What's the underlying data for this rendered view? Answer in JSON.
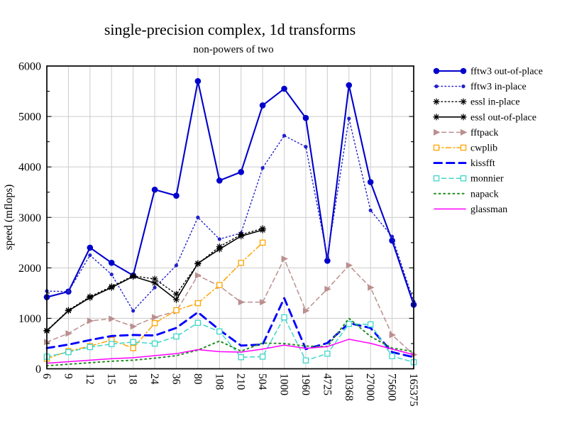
{
  "chart_data": {
    "type": "line",
    "title": "single-precision complex, 1d transforms",
    "subtitle": "non-powers of two",
    "ylabel": "speed (mflops)",
    "xlabel": "",
    "ylim": [
      0,
      6000
    ],
    "y_ticks": [
      0,
      1000,
      2000,
      3000,
      4000,
      5000,
      6000
    ],
    "y_minor_tick_step": 500,
    "grid": true,
    "legend_position": "right-outside",
    "background": "#ffffff",
    "grid_color": "#cccccc",
    "frame_color": "#000000",
    "categories": [
      6,
      9,
      12,
      15,
      18,
      24,
      36,
      80,
      108,
      210,
      504,
      1000,
      1960,
      4725,
      10368,
      27000,
      75600,
      165375
    ],
    "series": [
      {
        "name": "fftw3 out-of-place",
        "color": "#0000cd",
        "style": "solid",
        "weight": 2.1,
        "marker": "circle-large",
        "values": [
          1420,
          1530,
          2400,
          2100,
          1850,
          3550,
          3430,
          5700,
          3730,
          3900,
          5220,
          5550,
          4970,
          2140,
          5620,
          3700,
          2540,
          1270
        ]
      },
      {
        "name": "fftw3 in-place",
        "color": "#2020cd",
        "style": "dotted",
        "weight": 1.4,
        "marker": "circle-small",
        "values": [
          1540,
          1530,
          2250,
          1870,
          1150,
          1610,
          2050,
          3000,
          2570,
          2690,
          3980,
          4620,
          4400,
          2210,
          4960,
          3140,
          2620,
          1330
        ]
      },
      {
        "name": "essl in-place",
        "color": "#000000",
        "style": "dotted",
        "weight": 1.4,
        "marker": "asterisk",
        "values": [
          760,
          1160,
          1430,
          1630,
          1840,
          1780,
          1480,
          2080,
          2420,
          2660,
          2780,
          null,
          null,
          null,
          null,
          null,
          null,
          null
        ]
      },
      {
        "name": "essl out-of-place",
        "color": "#000000",
        "style": "solid",
        "weight": 1.6,
        "marker": "asterisk",
        "values": [
          750,
          1150,
          1410,
          1610,
          1830,
          1700,
          1370,
          2090,
          2370,
          2630,
          2750,
          null,
          null,
          null,
          null,
          null,
          null,
          null
        ]
      },
      {
        "name": "fftpack",
        "color": "#bc8f8f",
        "style": "dashed",
        "weight": 1.5,
        "marker": "triangle",
        "values": [
          530,
          700,
          950,
          990,
          840,
          1020,
          1140,
          1850,
          1640,
          1320,
          1320,
          2180,
          1150,
          1580,
          2050,
          1610,
          670,
          280
        ]
      },
      {
        "name": "cwplib",
        "color": "#ffa500",
        "style": "dashdot",
        "weight": 1.5,
        "marker": "square",
        "values": [
          200,
          350,
          450,
          570,
          410,
          905,
          1160,
          1300,
          1660,
          2100,
          2500,
          null,
          null,
          null,
          null,
          null,
          null,
          null
        ]
      },
      {
        "name": "kissfft",
        "color": "#0000ff",
        "style": "dashed-bold",
        "weight": 2.9,
        "marker": "none",
        "values": [
          410,
          480,
          570,
          650,
          670,
          660,
          810,
          1120,
          770,
          460,
          480,
          1400,
          390,
          510,
          905,
          810,
          330,
          230
        ]
      },
      {
        "name": "monnier",
        "color": "#3fd6ca",
        "style": "dashed",
        "weight": 1.5,
        "marker": "square",
        "values": [
          240,
          330,
          430,
          490,
          530,
          500,
          640,
          910,
          740,
          230,
          240,
          1020,
          165,
          300,
          890,
          880,
          250,
          130
        ]
      },
      {
        "name": "napack",
        "color": "#228b22",
        "style": "dotted-bold",
        "weight": 2.0,
        "marker": "none",
        "values": [
          60,
          90,
          120,
          150,
          170,
          210,
          260,
          370,
          550,
          350,
          510,
          500,
          450,
          440,
          1000,
          640,
          410,
          340
        ]
      },
      {
        "name": "glassman",
        "color": "#ff00ff",
        "style": "solid",
        "weight": 1.5,
        "marker": "none",
        "values": [
          110,
          140,
          170,
          200,
          220,
          260,
          300,
          380,
          340,
          330,
          390,
          470,
          405,
          440,
          585,
          505,
          390,
          280
        ]
      }
    ]
  }
}
